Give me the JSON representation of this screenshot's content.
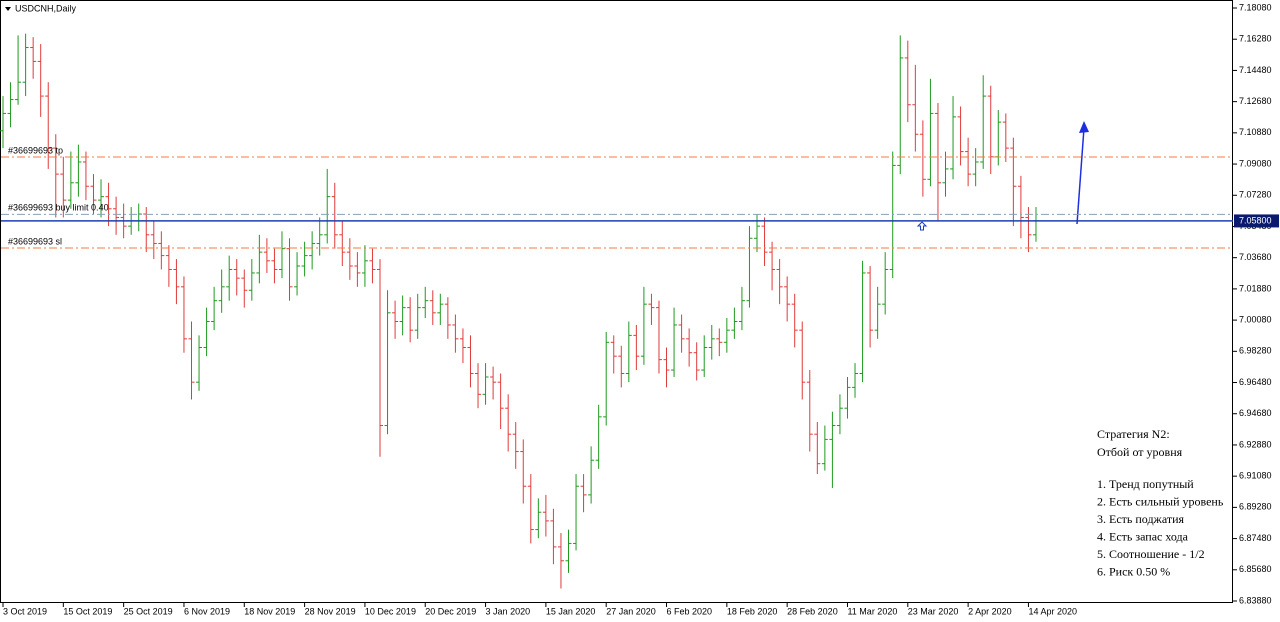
{
  "chart_data": {
    "type": "ohlc",
    "title": "USDCNH,Daily",
    "up_color": "#1f9a1f",
    "down_color": "#e03a3a",
    "ylim": [
      6.8388,
      7.1808
    ],
    "yticks": [
      {
        "value": 7.1808,
        "label": "7.18080"
      },
      {
        "value": 7.1628,
        "label": "7.16280"
      },
      {
        "value": 7.1448,
        "label": "7.14480"
      },
      {
        "value": 7.1268,
        "label": "7.12680"
      },
      {
        "value": 7.1088,
        "label": "7.10880"
      },
      {
        "value": 7.0908,
        "label": "7.09080"
      },
      {
        "value": 7.0728,
        "label": "7.07280"
      },
      {
        "value": 7.0548,
        "label": "7.05480"
      },
      {
        "value": 7.0368,
        "label": "7.03680"
      },
      {
        "value": 7.0188,
        "label": "7.01880"
      },
      {
        "value": 7.0008,
        "label": "7.00080"
      },
      {
        "value": 6.9828,
        "label": "6.98280"
      },
      {
        "value": 6.9648,
        "label": "6.96480"
      },
      {
        "value": 6.9468,
        "label": "6.94680"
      },
      {
        "value": 6.9288,
        "label": "6.92880"
      },
      {
        "value": 6.9108,
        "label": "6.91080"
      },
      {
        "value": 6.8928,
        "label": "6.89280"
      },
      {
        "value": 6.8748,
        "label": "6.87480"
      },
      {
        "value": 6.8568,
        "label": "6.85680"
      },
      {
        "value": 6.8388,
        "label": "6.83880"
      }
    ],
    "categories": [
      "3 Oct 2019",
      null,
      null,
      null,
      null,
      null,
      null,
      null,
      "15 Oct 2019",
      null,
      null,
      null,
      null,
      null,
      null,
      null,
      "25 Oct 2019",
      null,
      null,
      null,
      null,
      null,
      null,
      null,
      "6 Nov 2019",
      null,
      null,
      null,
      null,
      null,
      null,
      null,
      "18 Nov 2019",
      null,
      null,
      null,
      null,
      null,
      null,
      null,
      "28 Nov 2019",
      null,
      null,
      null,
      null,
      null,
      null,
      null,
      "10 Dec 2019",
      null,
      null,
      null,
      null,
      null,
      null,
      null,
      "20 Dec 2019",
      null,
      null,
      null,
      null,
      null,
      null,
      null,
      "3 Jan 2020",
      null,
      null,
      null,
      null,
      null,
      null,
      null,
      "15 Jan 2020",
      null,
      null,
      null,
      null,
      null,
      null,
      null,
      "27 Jan 2020",
      null,
      null,
      null,
      null,
      null,
      null,
      null,
      "6 Feb 2020",
      null,
      null,
      null,
      null,
      null,
      null,
      null,
      "18 Feb 2020",
      null,
      null,
      null,
      null,
      null,
      null,
      null,
      "28 Feb 2020",
      null,
      null,
      null,
      null,
      null,
      null,
      null,
      "11 Mar 2020",
      null,
      null,
      null,
      null,
      null,
      null,
      null,
      "23 Mar 2020",
      null,
      null,
      null,
      null,
      null,
      null,
      null,
      "2 Apr 2020",
      null,
      null,
      null,
      null,
      null,
      null,
      null,
      "14 Apr 2020",
      null
    ],
    "ohlc": [
      [
        7.11,
        7.13,
        7.1,
        7.12
      ],
      [
        7.12,
        7.138,
        7.112,
        7.128
      ],
      [
        7.128,
        7.165,
        7.125,
        7.138
      ],
      [
        7.138,
        7.166,
        7.13,
        7.158
      ],
      [
        7.158,
        7.164,
        7.14,
        7.15
      ],
      [
        7.15,
        7.16,
        7.118,
        7.13
      ],
      [
        7.13,
        7.138,
        7.088,
        7.1
      ],
      [
        7.1,
        7.108,
        7.06,
        7.085
      ],
      [
        7.085,
        7.095,
        7.06,
        7.07
      ],
      [
        7.07,
        7.098,
        7.065,
        7.08
      ],
      [
        7.08,
        7.102,
        7.072,
        7.092
      ],
      [
        7.092,
        7.098,
        7.07,
        7.078
      ],
      [
        7.078,
        7.085,
        7.062,
        7.07
      ],
      [
        7.07,
        7.082,
        7.06,
        7.072
      ],
      [
        7.072,
        7.08,
        7.055,
        7.065
      ],
      [
        7.065,
        7.072,
        7.05,
        7.06
      ],
      [
        7.06,
        7.068,
        7.048,
        7.055
      ],
      [
        7.055,
        7.066,
        7.05,
        7.058
      ],
      [
        7.058,
        7.068,
        7.052,
        7.062
      ],
      [
        7.062,
        7.066,
        7.04,
        7.05
      ],
      [
        7.05,
        7.058,
        7.036,
        7.045
      ],
      [
        7.045,
        7.052,
        7.03,
        7.038
      ],
      [
        7.038,
        7.044,
        7.02,
        7.03
      ],
      [
        7.03,
        7.036,
        7.01,
        7.02
      ],
      [
        7.02,
        7.026,
        6.982,
        6.99
      ],
      [
        6.99,
        7.0,
        6.955,
        6.965
      ],
      [
        6.965,
        6.992,
        6.96,
        6.985
      ],
      [
        6.985,
        7.008,
        6.98,
        7.0
      ],
      [
        7.0,
        7.02,
        6.995,
        7.012
      ],
      [
        7.012,
        7.03,
        7.005,
        7.02
      ],
      [
        7.02,
        7.038,
        7.012,
        7.03
      ],
      [
        7.03,
        7.036,
        7.015,
        7.025
      ],
      [
        7.025,
        7.03,
        7.008,
        7.018
      ],
      [
        7.018,
        7.036,
        7.012,
        7.028
      ],
      [
        7.028,
        7.05,
        7.022,
        7.04
      ],
      [
        7.04,
        7.048,
        7.028,
        7.035
      ],
      [
        7.035,
        7.042,
        7.022,
        7.03
      ],
      [
        7.03,
        7.052,
        7.025,
        7.042
      ],
      [
        7.042,
        7.048,
        7.012,
        7.02
      ],
      [
        7.02,
        7.04,
        7.015,
        7.032
      ],
      [
        7.032,
        7.046,
        7.026,
        7.038
      ],
      [
        7.038,
        7.052,
        7.03,
        7.045
      ],
      [
        7.045,
        7.06,
        7.038,
        7.05
      ],
      [
        7.05,
        7.088,
        7.045,
        7.072
      ],
      [
        7.072,
        7.08,
        7.042,
        7.05
      ],
      [
        7.05,
        7.058,
        7.032,
        7.04
      ],
      [
        7.04,
        7.048,
        7.024,
        7.032
      ],
      [
        7.032,
        7.04,
        7.02,
        7.028
      ],
      [
        7.028,
        7.044,
        7.02,
        7.035
      ],
      [
        7.035,
        7.042,
        7.022,
        7.03
      ],
      [
        7.03,
        7.036,
        6.922,
        6.94
      ],
      [
        6.94,
        7.018,
        6.935,
        7.005
      ],
      [
        7.005,
        7.012,
        6.99,
        7.0
      ],
      [
        7.0,
        7.015,
        6.992,
        7.008
      ],
      [
        7.008,
        7.014,
        6.988,
        6.995
      ],
      [
        6.995,
        7.016,
        6.99,
        7.008
      ],
      [
        7.008,
        7.02,
        7.002,
        7.012
      ],
      [
        7.012,
        7.018,
        6.998,
        7.005
      ],
      [
        7.005,
        7.016,
        6.998,
        7.01
      ],
      [
        7.01,
        7.014,
        6.99,
        6.998
      ],
      [
        6.998,
        7.004,
        6.982,
        6.99
      ],
      [
        6.99,
        6.996,
        6.976,
        6.985
      ],
      [
        6.985,
        6.992,
        6.962,
        6.97
      ],
      [
        6.97,
        6.976,
        6.95,
        6.958
      ],
      [
        6.958,
        6.976,
        6.952,
        6.968
      ],
      [
        6.968,
        6.974,
        6.955,
        6.965
      ],
      [
        6.965,
        6.97,
        6.938,
        6.95
      ],
      [
        6.95,
        6.958,
        6.925,
        6.935
      ],
      [
        6.935,
        6.942,
        6.915,
        6.925
      ],
      [
        6.925,
        6.932,
        6.895,
        6.905
      ],
      [
        6.905,
        6.912,
        6.872,
        6.88
      ],
      [
        6.88,
        6.898,
        6.875,
        6.89
      ],
      [
        6.89,
        6.9,
        6.876,
        6.885
      ],
      [
        6.885,
        6.892,
        6.86,
        6.87
      ],
      [
        6.87,
        6.878,
        6.846,
        6.862
      ],
      [
        6.862,
        6.88,
        6.855,
        6.872
      ],
      [
        6.872,
        6.912,
        6.868,
        6.905
      ],
      [
        6.905,
        6.912,
        6.89,
        6.9
      ],
      [
        6.9,
        6.928,
        6.895,
        6.92
      ],
      [
        6.92,
        6.952,
        6.915,
        6.945
      ],
      [
        6.945,
        6.994,
        6.94,
        6.988
      ],
      [
        6.988,
        6.992,
        6.97,
        6.98
      ],
      [
        6.98,
        6.986,
        6.962,
        6.97
      ],
      [
        6.97,
        7.0,
        6.965,
        6.992
      ],
      [
        6.992,
        6.998,
        6.972,
        6.98
      ],
      [
        6.98,
        7.02,
        6.975,
        7.01
      ],
      [
        7.01,
        7.016,
        6.998,
        7.008
      ],
      [
        7.008,
        7.012,
        6.97,
        6.978
      ],
      [
        6.978,
        6.985,
        6.962,
        6.972
      ],
      [
        6.972,
        7.008,
        6.968,
        6.998
      ],
      [
        6.998,
        7.004,
        6.982,
        6.99
      ],
      [
        6.99,
        6.996,
        6.974,
        6.982
      ],
      [
        6.982,
        6.988,
        6.966,
        6.972
      ],
      [
        6.972,
        6.992,
        6.968,
        6.985
      ],
      [
        6.985,
        6.998,
        6.978,
        6.99
      ],
      [
        6.99,
        6.996,
        6.98,
        6.988
      ],
      [
        6.988,
        7.002,
        6.982,
        6.995
      ],
      [
        6.995,
        7.008,
        6.99,
        7.0
      ],
      [
        7.0,
        7.02,
        6.995,
        7.012
      ],
      [
        7.012,
        7.055,
        7.008,
        7.048
      ],
      [
        7.048,
        7.062,
        7.04,
        7.055
      ],
      [
        7.055,
        7.06,
        7.032,
        7.04
      ],
      [
        7.04,
        7.046,
        7.018,
        7.03
      ],
      [
        7.03,
        7.036,
        7.01,
        7.02
      ],
      [
        7.02,
        7.026,
        7.0,
        7.01
      ],
      [
        7.01,
        7.016,
        6.985,
        6.995
      ],
      [
        6.995,
        7.0,
        6.955,
        6.965
      ],
      [
        6.965,
        6.972,
        6.925,
        6.935
      ],
      [
        6.935,
        6.942,
        6.912,
        6.918
      ],
      [
        6.918,
        6.94,
        6.914,
        6.932
      ],
      [
        6.932,
        6.948,
        6.904,
        6.94
      ],
      [
        6.94,
        6.958,
        6.935,
        6.95
      ],
      [
        6.95,
        6.968,
        6.944,
        6.962
      ],
      [
        6.962,
        6.976,
        6.956,
        6.97
      ],
      [
        6.97,
        7.035,
        6.965,
        7.028
      ],
      [
        7.028,
        7.032,
        6.985,
        6.995
      ],
      [
        6.995,
        7.02,
        6.99,
        7.01
      ],
      [
        7.01,
        7.04,
        7.004,
        7.03
      ],
      [
        7.03,
        7.098,
        7.025,
        7.09
      ],
      [
        7.09,
        7.165,
        7.085,
        7.152
      ],
      [
        7.152,
        7.162,
        7.115,
        7.125
      ],
      [
        7.125,
        7.148,
        7.098,
        7.108
      ],
      [
        7.108,
        7.116,
        7.072,
        7.082
      ],
      [
        7.082,
        7.14,
        7.078,
        7.12
      ],
      [
        7.12,
        7.126,
        7.058,
        7.08
      ],
      [
        7.08,
        7.098,
        7.072,
        7.088
      ],
      [
        7.088,
        7.13,
        7.082,
        7.118
      ],
      [
        7.118,
        7.124,
        7.09,
        7.098
      ],
      [
        7.098,
        7.106,
        7.078,
        7.085
      ],
      [
        7.085,
        7.1,
        7.078,
        7.092
      ],
      [
        7.092,
        7.142,
        7.088,
        7.13
      ],
      [
        7.13,
        7.136,
        7.085,
        7.095
      ],
      [
        7.095,
        7.122,
        7.09,
        7.115
      ],
      [
        7.115,
        7.12,
        7.092,
        7.1
      ],
      [
        7.1,
        7.106,
        7.055,
        7.078
      ],
      [
        7.078,
        7.084,
        7.048,
        7.06
      ],
      [
        7.06,
        7.066,
        7.04,
        7.05
      ],
      [
        7.05,
        7.066,
        7.046,
        7.058
      ]
    ],
    "levels": [
      {
        "name": "#36699693 tp",
        "value": 7.0949,
        "color": "#f07c3c",
        "style": "dashdot"
      },
      {
        "name": "#36699693 buy limit 0.40",
        "value": 7.0618,
        "color": "#8aa0b8",
        "style": "dashdot"
      },
      {
        "name": "#36699693 sl",
        "value": 7.0424,
        "color": "#f07c3c",
        "style": "dashdot"
      }
    ],
    "price": {
      "value": 7.058,
      "label": "7.05800",
      "color": "#1c3fb0"
    },
    "annotation": {
      "heading": [
        "Стратегия N2:",
        "Отбой от уровня"
      ],
      "items": [
        "1. Тренд попутный",
        "2. Есть сильный уровень",
        "3. Есть поджатия",
        "4. Есть запас хода",
        "5. Соотношение - 1/2",
        "6. Риск 0.50 %"
      ]
    }
  }
}
